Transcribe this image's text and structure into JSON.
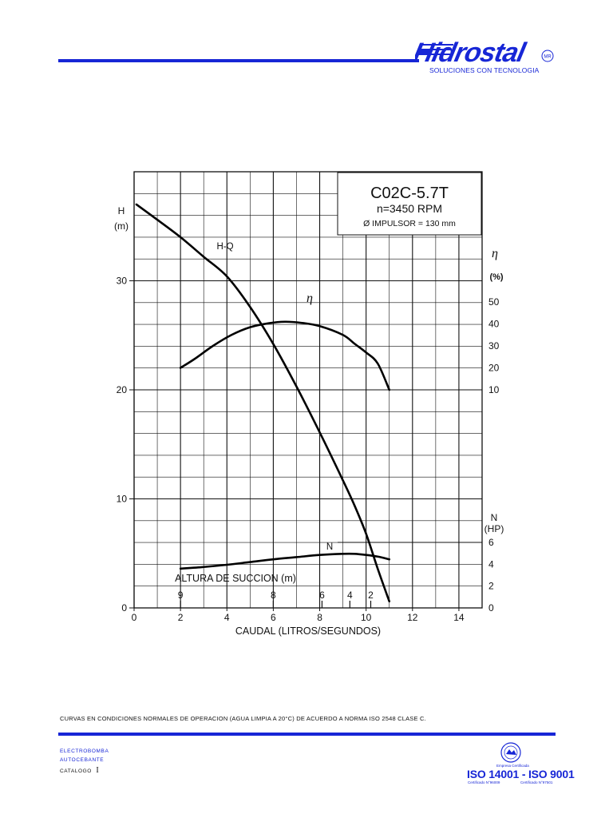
{
  "header": {
    "brand": "Hidrostal",
    "brand_mark": "MR",
    "tagline": "SOLUCIONES CON TECNOLOGIA",
    "color": "#1726d6"
  },
  "chart_data": {
    "type": "line",
    "title": "C02C-5.7T",
    "subtitle": "n=3450 RPM",
    "impeller": "Ø IMPULSOR = 130 mm",
    "xlabel": "CAUDAL (LITROS/SEGUNDOS)",
    "x_ticks": [
      "0",
      "2",
      "4",
      "6",
      "8",
      "10",
      "12",
      "14"
    ],
    "xlim": [
      0,
      15
    ],
    "ylabel_head": [
      "H",
      "(m)"
    ],
    "y_ticks_head": [
      "0",
      "10",
      "20",
      "30"
    ],
    "ylim_head": [
      0,
      40
    ],
    "ylabel_eff": [
      "η",
      "(%)"
    ],
    "y_ticks_eff": [
      "10",
      "20",
      "30",
      "40",
      "50"
    ],
    "ylabel_power": [
      "N",
      "(HP)"
    ],
    "y_ticks_power": [
      "0",
      "2",
      "4",
      "6"
    ],
    "suction_label": "ALTURA DE SUCCION (m)",
    "suction_marks": [
      {
        "label": "9",
        "x": 2
      },
      {
        "label": "8",
        "x": 6
      },
      {
        "label": "6",
        "x": 8.1
      },
      {
        "label": "4",
        "x": 9.3
      },
      {
        "label": "2",
        "x": 10.2
      }
    ],
    "grid": true,
    "series": [
      {
        "name": "H-Q",
        "axis": "head",
        "x": [
          0.1,
          1,
          2,
          3,
          4,
          5,
          6,
          7,
          8,
          9,
          9.5,
          10,
          10.5,
          11
        ],
        "y": [
          37,
          35.6,
          34,
          32.2,
          30.4,
          27.6,
          24.2,
          20.3,
          16.1,
          11.7,
          9.4,
          6.8,
          3.6,
          0.6
        ]
      },
      {
        "name": "η",
        "axis": "efficiency",
        "x": [
          2,
          2.6,
          3.4,
          4.2,
          5,
          5.8,
          6.5,
          7.2,
          8,
          9,
          9.5,
          10,
          10.5,
          11
        ],
        "y": [
          20,
          24,
          30,
          35,
          38.5,
          40.3,
          41,
          40.5,
          39,
          35,
          31,
          27,
          22,
          10
        ]
      },
      {
        "name": "N",
        "axis": "power",
        "x": [
          2,
          3,
          4,
          5,
          6,
          7,
          8,
          9,
          9.5,
          10,
          10.5,
          11
        ],
        "y": [
          3.6,
          3.75,
          3.95,
          4.2,
          4.45,
          4.65,
          4.85,
          4.95,
          4.95,
          4.85,
          4.7,
          4.45
        ]
      }
    ]
  },
  "footer": {
    "note": "CURVAS EN CONDICIONES NORMALES DE OPERACION (AGUA LIMPIA A 20°C) DE ACUERDO A NORMA ISO 2548 CLASE C.",
    "line1": "ELECTROBOMBA",
    "line2": "AUTOCEBANTE",
    "catalog_label": "CATALOGO",
    "catalog_num": "I",
    "cert_caption": "Empresa Certificada",
    "iso": "ISO 14001 - ISO 9001",
    "cert_a": "Certificado N°96009",
    "cert_b": "Certificado N°97501"
  }
}
